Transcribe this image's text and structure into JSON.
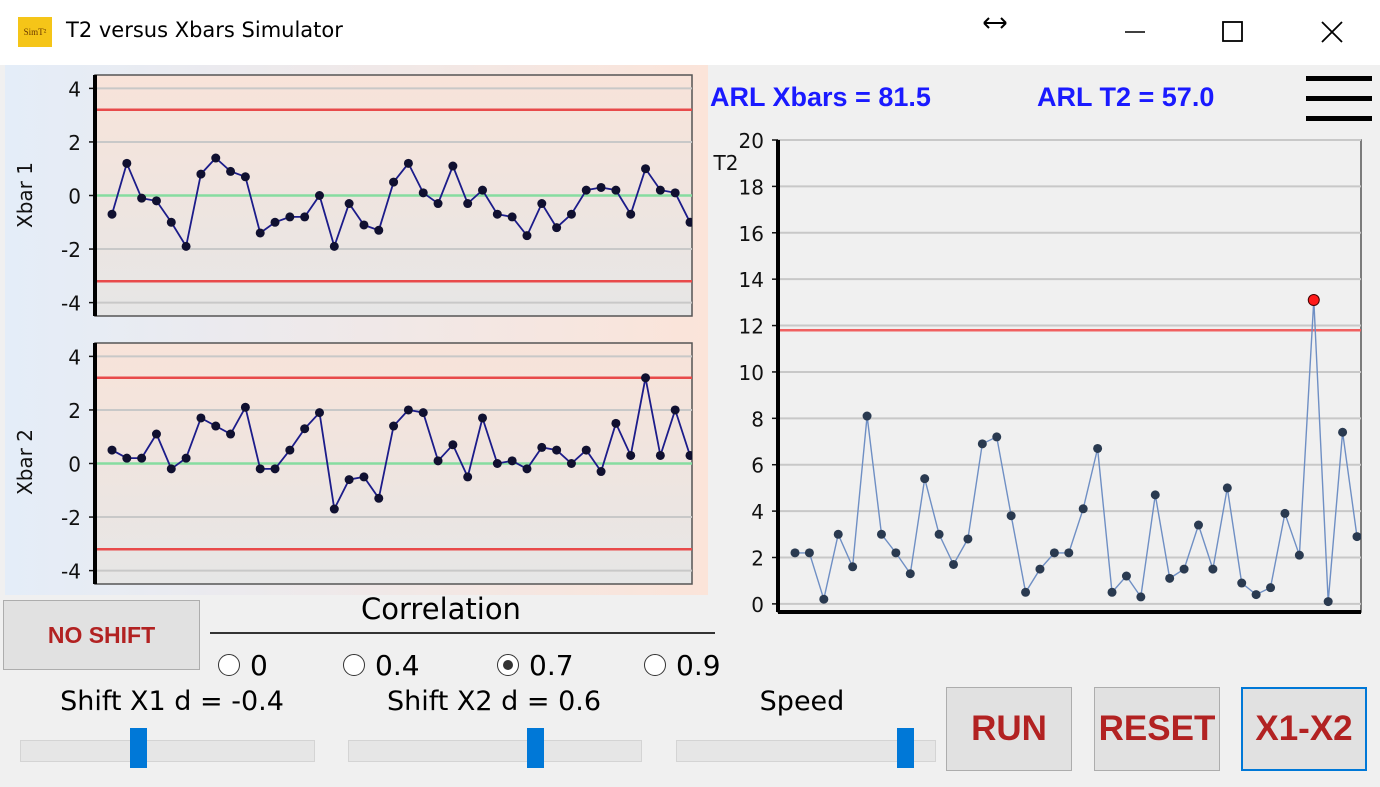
{
  "window": {
    "icon": "SimT²",
    "title": "T2 versus Xbars Simulator"
  },
  "arl": {
    "xbars": "ARL Xbars = 81.5",
    "t2": "ARL T2 = 57.0"
  },
  "chart_data": [
    {
      "type": "line",
      "ylabel": "Xbar 1",
      "values": [
        -0.7,
        1.2,
        -0.1,
        -0.2,
        -1.0,
        -1.9,
        0.8,
        1.4,
        0.9,
        0.7,
        -1.4,
        -1.0,
        -0.8,
        -0.8,
        0,
        -1.9,
        -0.3,
        -1.1,
        -1.3,
        0.5,
        1.2,
        0.1,
        -0.3,
        1.1,
        -0.3,
        0.2,
        -0.7,
        -0.8,
        -1.5,
        -0.3,
        -1.2,
        -0.7,
        0.2,
        0.3,
        0.2,
        -0.7,
        1.0,
        0.2,
        0.1,
        -1.0
      ],
      "ylim": [
        -4.5,
        4.5
      ],
      "yticks": [
        -4,
        -2,
        0,
        2,
        4
      ],
      "grid": true,
      "control_limits": [
        -3.2,
        3.2
      ],
      "center_line": 0,
      "line_color": "#1c1c8a",
      "marker_color": "#101030",
      "limit_color": "#e84a4a",
      "center_color": "#86dca0"
    },
    {
      "type": "line",
      "ylabel": "Xbar 2",
      "values": [
        0.5,
        0.2,
        0.2,
        1.1,
        -0.2,
        0.2,
        1.7,
        1.4,
        1.1,
        2.1,
        -0.2,
        -0.2,
        0.5,
        1.3,
        1.9,
        -1.7,
        -0.6,
        -0.5,
        -1.3,
        1.4,
        2.0,
        1.9,
        0.1,
        0.7,
        -0.5,
        1.7,
        0.0,
        0.1,
        -0.2,
        0.6,
        0.5,
        0.0,
        0.5,
        -0.3,
        1.5,
        0.3,
        3.2,
        0.3,
        2.0,
        0.3
      ],
      "ylim": [
        -4.5,
        4.5
      ],
      "yticks": [
        -4,
        -2,
        0,
        2,
        4
      ],
      "grid": true,
      "control_limits": [
        -3.2,
        3.2
      ],
      "center_line": 0,
      "line_color": "#1c1c8a",
      "marker_color": "#101030",
      "limit_color": "#e84a4a",
      "center_color": "#86dca0"
    },
    {
      "type": "line",
      "ylabel": "T2",
      "values": [
        2.2,
        2.2,
        0.2,
        3.0,
        1.6,
        8.1,
        3.0,
        2.2,
        1.3,
        5.4,
        3.0,
        1.7,
        2.8,
        6.9,
        7.2,
        3.8,
        0.5,
        1.5,
        2.2,
        2.2,
        4.1,
        6.7,
        0.5,
        1.2,
        0.3,
        4.7,
        1.1,
        1.5,
        3.4,
        1.5,
        5.0,
        0.9,
        0.4,
        0.7,
        3.9,
        2.1,
        13.1,
        0.1,
        7.4,
        2.9
      ],
      "ylim": [
        -0.35,
        20
      ],
      "yticks": [
        0,
        2,
        4,
        6,
        8,
        10,
        12,
        14,
        16,
        18,
        20
      ],
      "grid": true,
      "control_limits": [
        11.8
      ],
      "line_color": "#6f8fc4",
      "marker_color": "#2a3a50",
      "limit_color": "#f06060",
      "alarm_color": "#ff1a1a"
    }
  ],
  "controls": {
    "no_shift": "NO SHIFT",
    "correlation": {
      "label": "Correlation",
      "options": [
        {
          "label": "0",
          "checked": false
        },
        {
          "label": "0.4",
          "checked": false
        },
        {
          "label": "0.7",
          "checked": true
        },
        {
          "label": "0.9",
          "checked": false
        }
      ]
    },
    "shift_x1": "Shift X1 d = -0.4",
    "shift_x2": "Shift X2 d = 0.6",
    "speed": "Speed",
    "buttons": [
      "RUN",
      "RESET",
      "X1-X2"
    ]
  }
}
